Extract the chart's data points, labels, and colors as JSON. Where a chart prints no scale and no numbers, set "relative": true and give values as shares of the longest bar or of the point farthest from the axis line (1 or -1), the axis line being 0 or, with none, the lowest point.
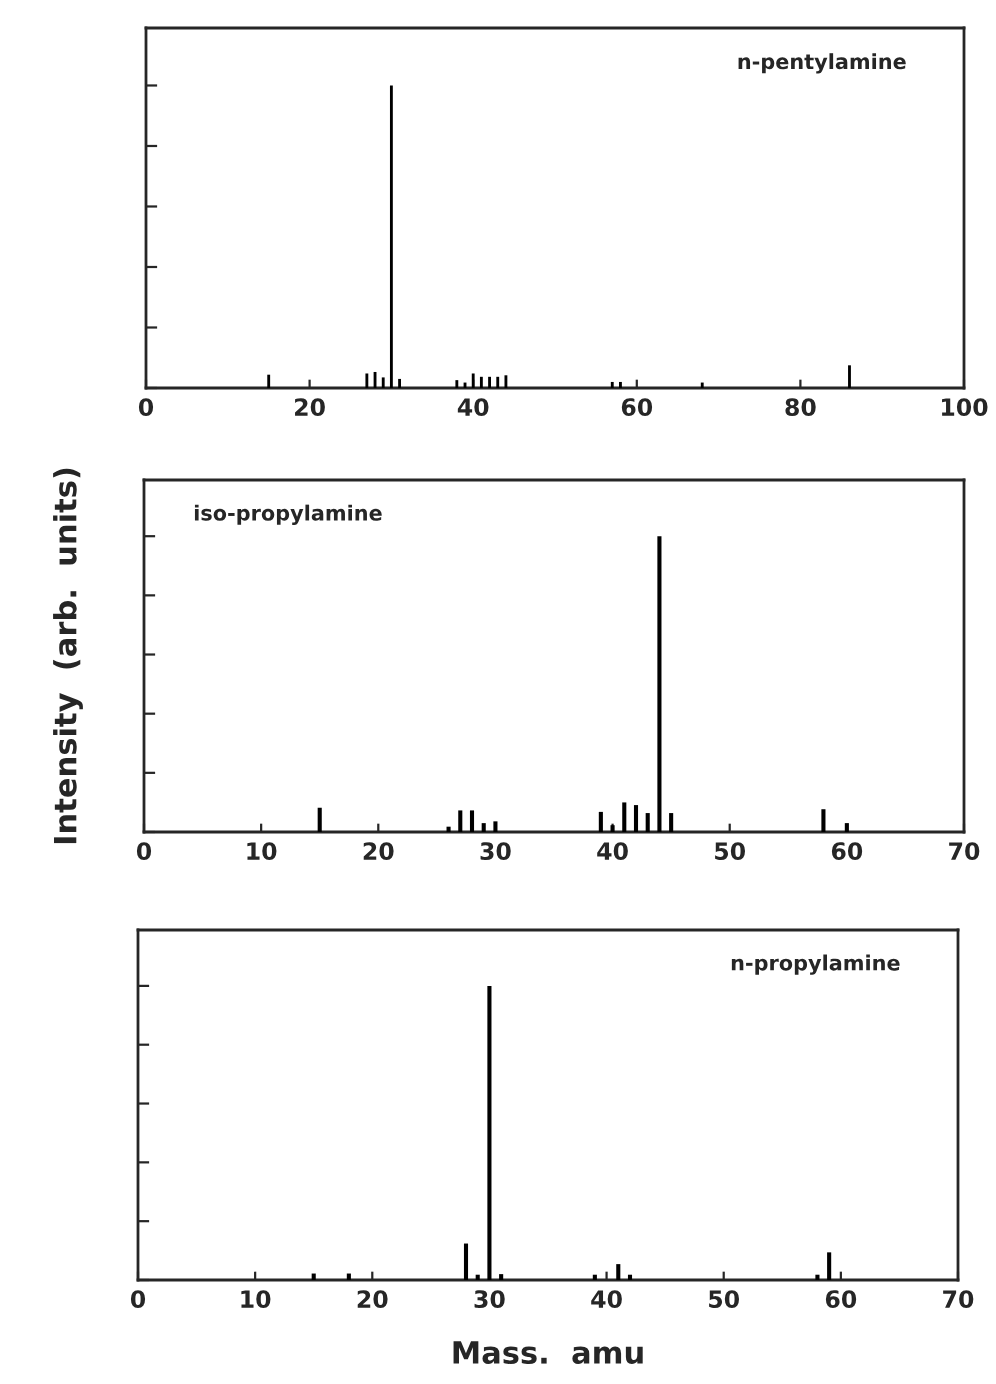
{
  "chart_data": [
    {
      "type": "bar",
      "title": "n-pentylamine",
      "relative": true,
      "tick_labels": "x",
      "xlim": [
        0,
        100
      ],
      "xticks": [
        0,
        20,
        40,
        60,
        80,
        100
      ],
      "x": [
        15,
        27,
        28,
        29,
        30,
        31,
        38,
        39,
        40,
        41,
        42,
        43,
        44,
        57,
        58,
        68,
        86
      ],
      "series": [
        {
          "color": "#000000",
          "values": [
            0.044,
            0.048,
            0.053,
            0.035,
            1.0,
            0.03,
            0.026,
            0.018,
            0.048,
            0.037,
            0.037,
            0.037,
            0.042,
            0.02,
            0.02,
            0.018,
            0.075
          ]
        }
      ]
    },
    {
      "type": "bar",
      "title": "iso-propylamine",
      "ylabel": "Intensity  (arb.  units)",
      "relative": true,
      "tick_labels": "x",
      "xlim": [
        0,
        70
      ],
      "xticks": [
        0,
        10,
        20,
        30,
        40,
        50,
        60,
        70
      ],
      "x": [
        15,
        26,
        27,
        28,
        29,
        30,
        39,
        40,
        41,
        42,
        43,
        44,
        45,
        58,
        60
      ],
      "series": [
        {
          "color": "#000000",
          "values": [
            0.082,
            0.018,
            0.073,
            0.073,
            0.03,
            0.036,
            0.068,
            0.023,
            0.1,
            0.091,
            0.064,
            1.0,
            0.064,
            0.077,
            0.03
          ]
        }
      ]
    },
    {
      "type": "bar",
      "title": "n-propylamine",
      "xlabel": "Mass.  amu",
      "relative": true,
      "tick_labels": "x",
      "xlim": [
        0,
        70
      ],
      "xticks": [
        0,
        10,
        20,
        30,
        40,
        50,
        60,
        70
      ],
      "x": [
        15,
        18,
        28,
        29,
        30,
        31,
        39,
        41,
        42,
        58,
        59
      ],
      "series": [
        {
          "color": "#000000",
          "values": [
            0.022,
            0.022,
            0.124,
            0.018,
            1.0,
            0.02,
            0.018,
            0.054,
            0.018,
            0.018,
            0.094
          ]
        }
      ]
    }
  ]
}
